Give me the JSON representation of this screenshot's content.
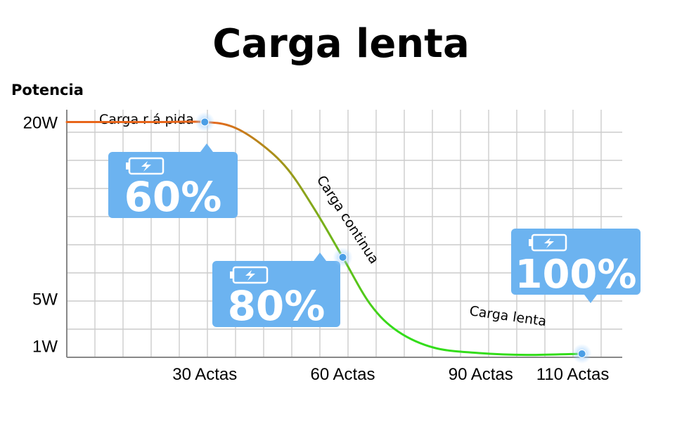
{
  "chart_data": {
    "type": "line",
    "title": "Carga lenta",
    "ylabel": "Potencia",
    "xlabel": "",
    "x_ticks": [
      {
        "value": 30,
        "label": "30 Actas"
      },
      {
        "value": 60,
        "label": "60 Actas"
      },
      {
        "value": 90,
        "label": "90 Actas"
      },
      {
        "value": 110,
        "label": "110 Actas"
      }
    ],
    "y_ticks": [
      {
        "value": 20,
        "label": "20W"
      },
      {
        "value": 5,
        "label": "5W"
      },
      {
        "value": 1,
        "label": "1W"
      }
    ],
    "xlim": [
      0,
      120
    ],
    "ylim": [
      0,
      22
    ],
    "grid": true,
    "series": [
      {
        "points": [
          [
            0,
            20
          ],
          [
            10,
            20
          ],
          [
            20,
            20
          ],
          [
            30,
            20
          ],
          [
            36,
            19.6
          ],
          [
            42,
            18.2
          ],
          [
            48,
            16
          ],
          [
            54,
            12.5
          ],
          [
            60,
            8.5
          ],
          [
            66,
            4.5
          ],
          [
            72,
            2.2
          ],
          [
            80,
            0.8
          ],
          [
            90,
            0.35
          ],
          [
            100,
            0.2
          ],
          [
            112,
            0.3
          ]
        ],
        "colors": [
          "#e8661b",
          "#33dd1a"
        ]
      }
    ],
    "markers": [
      {
        "x": 30,
        "y": 20,
        "label": "60%"
      },
      {
        "x": 60,
        "y": 8.5,
        "label": "80%"
      },
      {
        "x": 112,
        "y": 0.3,
        "label": "100%"
      }
    ],
    "annotations": [
      {
        "text": "Carga r á pida"
      },
      {
        "text": "Carga continua"
      },
      {
        "text": "Carga lenta"
      }
    ],
    "colors": {
      "callout": "#6cb3f0",
      "marker": "#4a9ee6"
    }
  }
}
